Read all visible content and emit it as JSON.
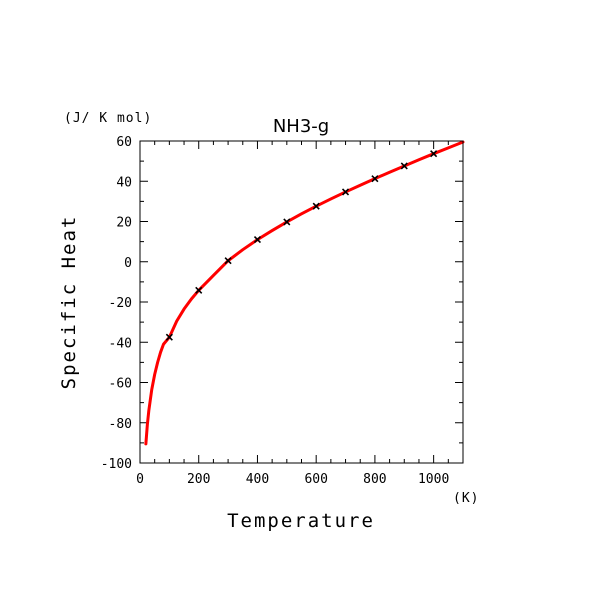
{
  "chart_data": {
    "type": "line",
    "title": "NH3-g",
    "xlabel": "Temperature",
    "ylabel": "Specific Heat",
    "x_unit": "(K)",
    "y_unit": "(J/ K mol)",
    "xlim": [
      0,
      1100
    ],
    "ylim": [
      -100,
      60
    ],
    "x_ticks": [
      0,
      200,
      400,
      600,
      800,
      1000
    ],
    "y_ticks": [
      -100,
      -80,
      -60,
      -40,
      -20,
      0,
      20,
      40,
      60
    ],
    "grid": false,
    "series": [
      {
        "kind": "curve",
        "color": "#ff0000",
        "x": [
          20,
          25,
          30,
          40,
          50,
          60,
          70,
          80,
          100,
          125,
          150,
          175,
          200,
          250,
          300,
          350,
          400,
          450,
          500,
          550,
          600,
          650,
          700,
          750,
          800,
          850,
          900,
          950,
          1000,
          1050,
          1100
        ],
        "y": [
          -90.5,
          -81,
          -74,
          -63.5,
          -56,
          -50,
          -45,
          -41,
          -37.5,
          -29.5,
          -23.5,
          -18.5,
          -14.2,
          -6.8,
          0.5,
          6,
          11,
          15.5,
          19.8,
          23.8,
          27.6,
          31.2,
          34.7,
          38,
          41.3,
          44.5,
          47.6,
          50.7,
          53.7,
          56.6,
          59.5
        ]
      },
      {
        "kind": "markers",
        "marker": "x",
        "color": "#000000",
        "x": [
          100,
          200,
          300,
          400,
          500,
          600,
          700,
          800,
          900,
          1000
        ],
        "y": [
          -37.5,
          -14.2,
          0.5,
          11,
          19.8,
          27.6,
          34.7,
          41.3,
          47.6,
          53.7
        ]
      }
    ]
  }
}
